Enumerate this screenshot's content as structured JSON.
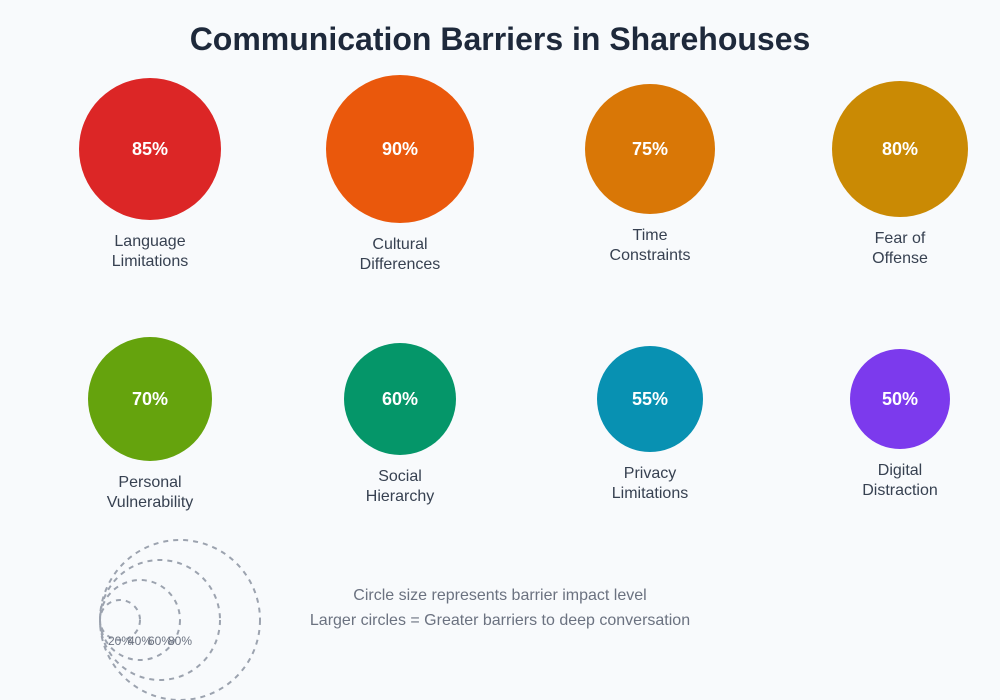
{
  "title": "Communication Barriers in Sharehouses",
  "chart_data": {
    "type": "bubble",
    "title": "Communication Barriers in Sharehouses",
    "items": [
      {
        "label": [
          "Language",
          "Limitations"
        ],
        "value": 85,
        "value_label": "85%",
        "color": "#dc2626"
      },
      {
        "label": [
          "Cultural",
          "Differences"
        ],
        "value": 90,
        "value_label": "90%",
        "color": "#ea580c"
      },
      {
        "label": [
          "Time",
          "Constraints"
        ],
        "value": 75,
        "value_label": "75%",
        "color": "#d97706"
      },
      {
        "label": [
          "Fear of",
          "Offense"
        ],
        "value": 80,
        "value_label": "80%",
        "color": "#ca8a04"
      },
      {
        "label": [
          "Personal",
          "Vulnerability"
        ],
        "value": 70,
        "value_label": "70%",
        "color": "#65a30d"
      },
      {
        "label": [
          "Social",
          "Hierarchy"
        ],
        "value": 60,
        "value_label": "60%",
        "color": "#059669"
      },
      {
        "label": [
          "Privacy",
          "Limitations"
        ],
        "value": 55,
        "value_label": "55%",
        "color": "#0891b2"
      },
      {
        "label": [
          "Digital",
          "Distraction"
        ],
        "value": 50,
        "value_label": "50%",
        "color": "#7c3aed"
      }
    ],
    "legend": {
      "levels": [
        20,
        40,
        60,
        80
      ],
      "level_labels": [
        "20%",
        "40%",
        "60%",
        "80%"
      ],
      "notes": [
        "Circle size represents barrier impact level",
        "Larger circles = Greater barriers to deep conversation"
      ]
    }
  }
}
